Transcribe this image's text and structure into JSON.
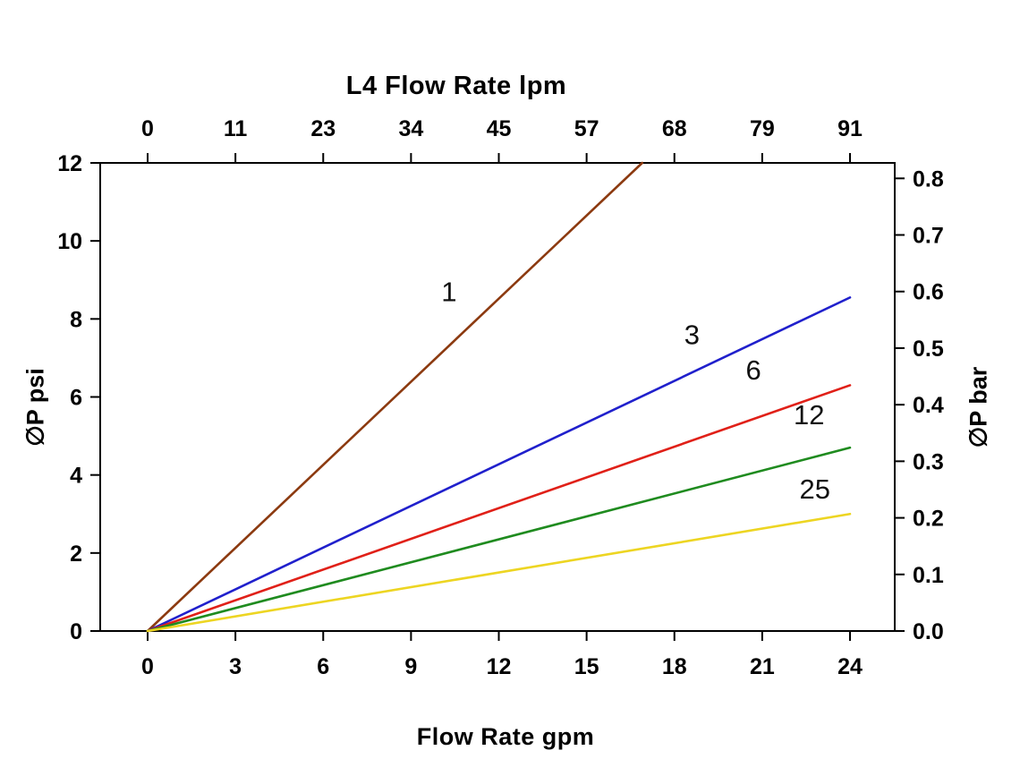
{
  "page": {
    "background": "#ffffff"
  },
  "chart_data": {
    "type": "line",
    "title_top": "L4 Flow Rate lpm",
    "xlabel": "Flow Rate gpm",
    "ylabel": "∅P psi",
    "y2label": "∅P bar",
    "xlim": [
      0,
      24
    ],
    "ylim": [
      0,
      12
    ],
    "y2lim_bar": [
      0.0,
      0.8
    ],
    "grid": false,
    "legend": false,
    "x_ticks_gpm": [
      0,
      3,
      6,
      9,
      12,
      15,
      18,
      21,
      24
    ],
    "x2_ticks_lpm": [
      0,
      11,
      23,
      34,
      45,
      57,
      68,
      79,
      91
    ],
    "y_ticks_psi": [
      0,
      2,
      4,
      6,
      8,
      10,
      12
    ],
    "y2_ticks_bar": [
      "0.0",
      "0.1",
      "0.2",
      "0.3",
      "0.4",
      "0.5",
      "0.6",
      "0.7",
      "0.8"
    ],
    "series": [
      {
        "name": "1",
        "color": "#8C3A10",
        "points": [
          [
            0,
            0
          ],
          [
            16.9,
            12
          ]
        ],
        "label_at": [
          10.3,
          8.45
        ]
      },
      {
        "name": "3",
        "color": "#2020CC",
        "points": [
          [
            0,
            0
          ],
          [
            24,
            8.55
          ]
        ],
        "label_at": [
          18.6,
          7.35
        ]
      },
      {
        "name": "6",
        "color": "#E02018",
        "points": [
          [
            0,
            0
          ],
          [
            24,
            6.3
          ]
        ],
        "label_at": [
          20.7,
          6.45
        ]
      },
      {
        "name": "12",
        "color": "#1F8B1F",
        "points": [
          [
            0,
            0
          ],
          [
            24,
            4.7
          ]
        ],
        "label_at": [
          22.6,
          5.3
        ]
      },
      {
        "name": "25",
        "color": "#EDD522",
        "points": [
          [
            0,
            0
          ],
          [
            24,
            3.0
          ]
        ],
        "label_at": [
          22.8,
          3.4
        ]
      }
    ]
  }
}
